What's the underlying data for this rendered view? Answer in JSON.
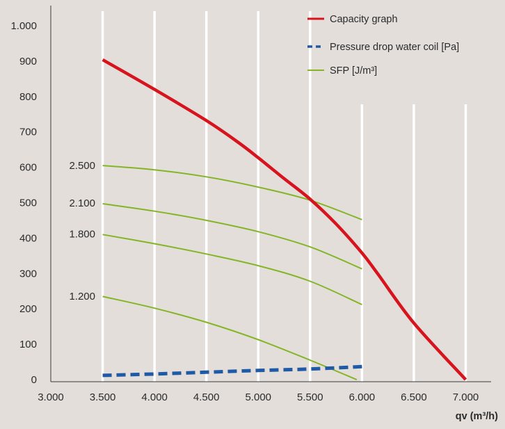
{
  "chart_data": {
    "type": "line",
    "xlabel": "qv (m³/h)",
    "ylabel": "",
    "xlim": [
      3000,
      7000
    ],
    "ylim": [
      0,
      1000
    ],
    "x_ticks": [
      3000,
      3500,
      4000,
      4500,
      5000,
      5500,
      6000,
      6500,
      7000
    ],
    "x_tick_labels": [
      "3.000",
      "3.500",
      "4.000",
      "4.500",
      "5.000",
      "5.500",
      "6.000",
      "6.500",
      "7.000"
    ],
    "y_ticks": [
      0,
      100,
      200,
      300,
      400,
      500,
      600,
      700,
      800,
      900,
      1000
    ],
    "y_tick_labels": [
      "0",
      "100",
      "200",
      "300",
      "400",
      "500",
      "600",
      "700",
      "800",
      "900",
      "1.000"
    ],
    "grid": "vertical",
    "legend_position": "top-right",
    "legend": [
      {
        "label": "Capacity graph",
        "color": "#d7141e",
        "style": "solid"
      },
      {
        "label": "Pressure drop water coil [Pa]",
        "color": "#1f5aa6",
        "style": "dashed"
      },
      {
        "label": "SFP [J/m³]",
        "color": "#84b526",
        "style": "solid"
      }
    ],
    "series": [
      {
        "role": "capacity",
        "color": "#d7141e",
        "style": "solid",
        "points": [
          [
            3500,
            904
          ],
          [
            4000,
            820
          ],
          [
            4500,
            732
          ],
          [
            4800,
            672
          ],
          [
            5000,
            627
          ],
          [
            5250,
            568
          ],
          [
            5500,
            510
          ],
          [
            5750,
            440
          ],
          [
            6000,
            358
          ],
          [
            6150,
            300
          ],
          [
            6500,
            160
          ],
          [
            7000,
            0
          ]
        ]
      },
      {
        "role": "pressure-drop",
        "color": "#1f5aa6",
        "style": "dashed",
        "points": [
          [
            3500,
            12
          ],
          [
            4000,
            16
          ],
          [
            4500,
            21
          ],
          [
            5000,
            26
          ],
          [
            5500,
            30
          ],
          [
            6000,
            37
          ]
        ]
      },
      {
        "role": "sfp",
        "label": "2.500",
        "color": "#84b526",
        "style": "solid",
        "points": [
          [
            3500,
            605
          ],
          [
            4000,
            593
          ],
          [
            4500,
            573
          ],
          [
            5000,
            544
          ],
          [
            5500,
            507
          ],
          [
            6000,
            452
          ]
        ]
      },
      {
        "role": "sfp",
        "label": "2.100",
        "color": "#84b526",
        "style": "solid",
        "points": [
          [
            3500,
            497
          ],
          [
            4000,
            476
          ],
          [
            4500,
            450
          ],
          [
            5000,
            418
          ],
          [
            5500,
            375
          ],
          [
            6000,
            313
          ]
        ]
      },
      {
        "role": "sfp",
        "label": "1.800",
        "color": "#84b526",
        "style": "solid",
        "points": [
          [
            3500,
            410
          ],
          [
            4000,
            384
          ],
          [
            4500,
            355
          ],
          [
            5000,
            322
          ],
          [
            5500,
            278
          ],
          [
            6000,
            212
          ]
        ]
      },
      {
        "role": "sfp",
        "label": "1.200",
        "color": "#84b526",
        "style": "solid",
        "points": [
          [
            3500,
            235
          ],
          [
            4000,
            202
          ],
          [
            4500,
            162
          ],
          [
            5000,
            113
          ],
          [
            5500,
            55
          ],
          [
            5950,
            0
          ]
        ]
      }
    ],
    "sfp_label_positions": [
      {
        "label": "2.500",
        "y": 605
      },
      {
        "label": "2.100",
        "y": 499
      },
      {
        "label": "1.800",
        "y": 412
      },
      {
        "label": "1.200",
        "y": 236
      }
    ]
  }
}
